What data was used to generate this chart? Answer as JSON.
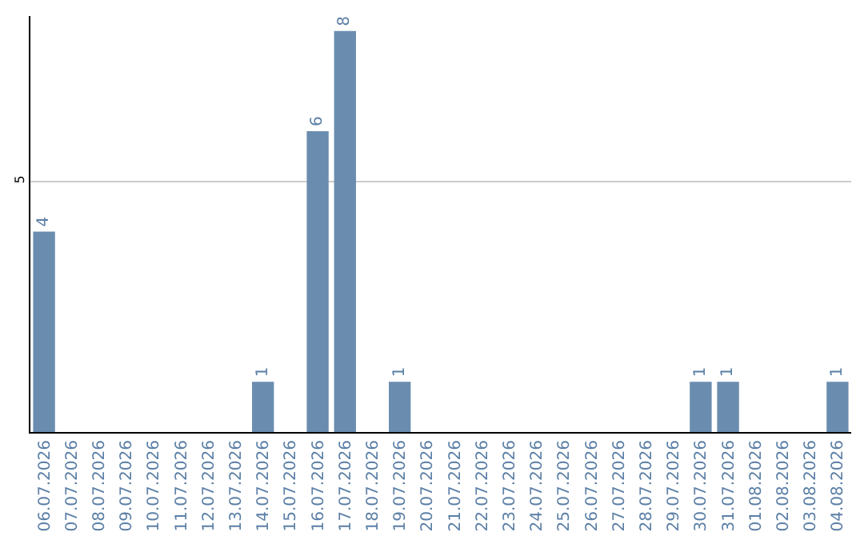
{
  "chart_data": {
    "type": "bar",
    "categories": [
      "06.07.2026",
      "07.07.2026",
      "08.07.2026",
      "09.07.2026",
      "10.07.2026",
      "11.07.2026",
      "12.07.2026",
      "13.07.2026",
      "14.07.2026",
      "15.07.2026",
      "16.07.2026",
      "17.07.2026",
      "18.07.2026",
      "19.07.2026",
      "20.07.2026",
      "21.07.2026",
      "22.07.2026",
      "23.07.2026",
      "24.07.2026",
      "25.07.2026",
      "26.07.2026",
      "27.07.2026",
      "28.07.2026",
      "29.07.2026",
      "30.07.2026",
      "31.07.2026",
      "01.08.2026",
      "02.08.2026",
      "03.08.2026",
      "04.08.2026"
    ],
    "values": [
      4,
      0,
      0,
      0,
      0,
      0,
      0,
      0,
      1,
      0,
      6,
      8,
      0,
      1,
      0,
      0,
      0,
      0,
      0,
      0,
      0,
      0,
      0,
      0,
      1,
      1,
      0,
      0,
      0,
      1
    ],
    "value_labels": [
      "4",
      null,
      null,
      null,
      null,
      null,
      null,
      null,
      "1",
      null,
      "6",
      "8",
      null,
      "1",
      null,
      null,
      null,
      null,
      null,
      null,
      null,
      null,
      null,
      null,
      "1",
      "1",
      null,
      null,
      null,
      "1"
    ],
    "color": "#6a8caf",
    "ylim": [
      0,
      8.3
    ],
    "yticks": [
      5
    ],
    "grid": "y"
  }
}
